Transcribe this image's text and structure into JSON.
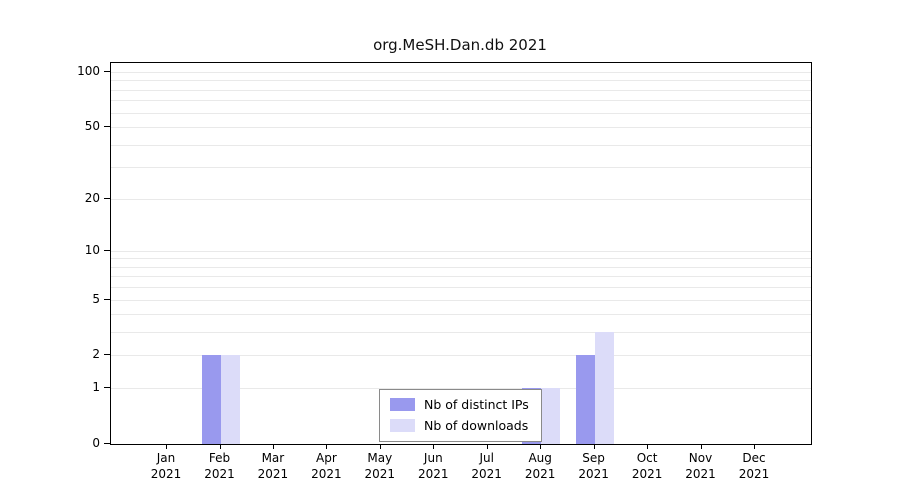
{
  "chart_data": {
    "type": "bar",
    "title": "org.MeSH.Dan.db 2021",
    "categories": [
      "Jan",
      "Feb",
      "Mar",
      "Apr",
      "May",
      "Jun",
      "Jul",
      "Aug",
      "Sep",
      "Oct",
      "Nov",
      "Dec"
    ],
    "year": "2021",
    "series": [
      {
        "name": "Nb of distinct IPs",
        "color": "#9999ee",
        "values": [
          0,
          2,
          0,
          0,
          0,
          0,
          0,
          1,
          2,
          0,
          0,
          0
        ]
      },
      {
        "name": "Nb of downloads",
        "color": "#dcdcf9",
        "values": [
          0,
          2,
          0,
          0,
          0,
          0,
          0,
          1,
          3,
          0,
          0,
          0
        ]
      }
    ],
    "y_ticks": [
      0,
      1,
      2,
      5,
      10,
      20,
      50,
      100
    ],
    "gridlines": [
      1,
      2,
      3,
      4,
      5,
      6,
      7,
      8,
      9,
      10,
      20,
      30,
      40,
      50,
      60,
      70,
      80,
      90,
      100
    ],
    "y_scale": "log10(value+1)",
    "ylim": [
      0,
      100
    ],
    "legend_position": "bottom-center",
    "grid_color": "#e9e9e9",
    "axis_color": "#000000"
  }
}
